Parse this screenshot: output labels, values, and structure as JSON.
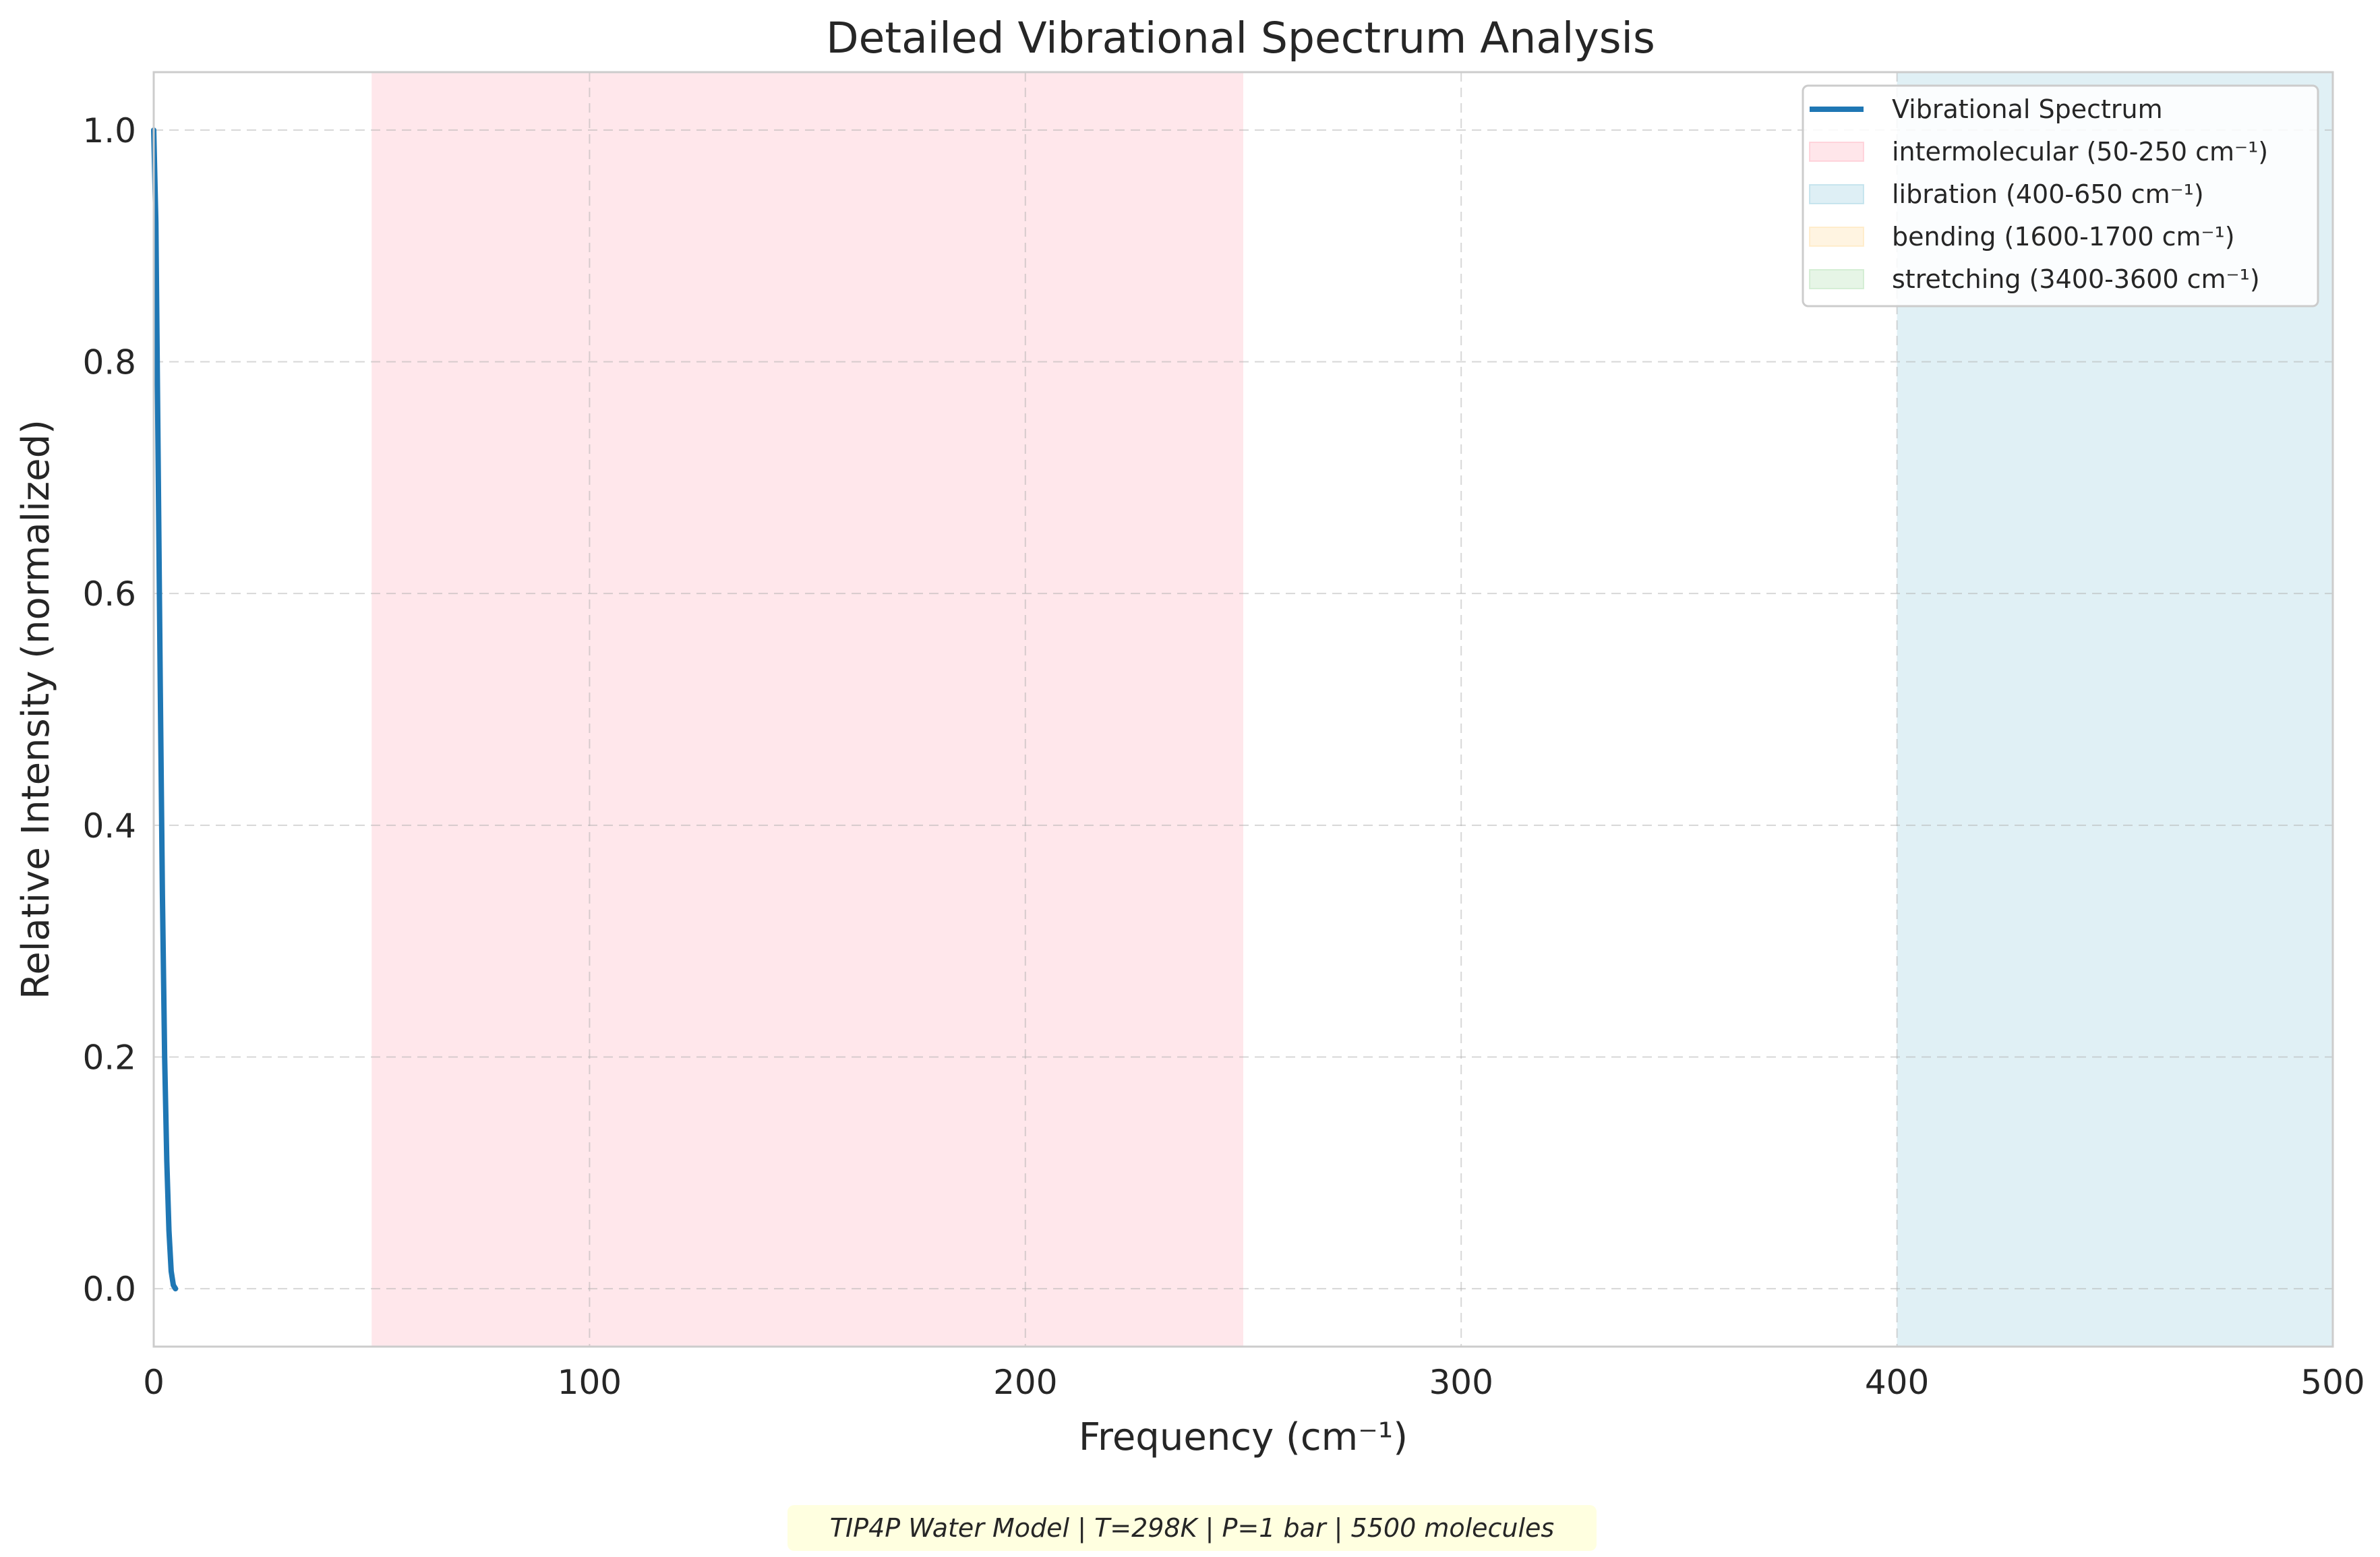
{
  "chart_data": {
    "type": "line",
    "title": "Detailed Vibrational Spectrum Analysis",
    "xlabel": "Frequency (cm⁻¹)",
    "ylabel": "Relative Intensity (normalized)",
    "xlim": [
      0,
      500
    ],
    "ylim": [
      -0.05,
      1.05
    ],
    "xticks": [
      0,
      100,
      200,
      300,
      400,
      500
    ],
    "xtick_labels": [
      "0",
      "100",
      "200",
      "300",
      "400",
      "500"
    ],
    "yticks": [
      0.0,
      0.2,
      0.4,
      0.6,
      0.8,
      1.0
    ],
    "ytick_labels": [
      "0.0",
      "0.2",
      "0.4",
      "0.6",
      "0.8",
      "1.0"
    ],
    "grid": true,
    "legend_position": "top-right",
    "series": [
      {
        "name": "Vibrational Spectrum",
        "color": "#1f77b4",
        "x": [
          0,
          0.5,
          1.0,
          1.5,
          2.0,
          2.5,
          3.0,
          3.5,
          4.0,
          4.5,
          5.0
        ],
        "y": [
          1.0,
          0.92,
          0.72,
          0.52,
          0.34,
          0.2,
          0.11,
          0.05,
          0.015,
          0.003,
          0.0
        ]
      }
    ],
    "bands": [
      {
        "label": "intermolecular (50-250 cm⁻¹)",
        "x0": 50,
        "x1": 250,
        "color": "#ffc0cb"
      },
      {
        "label": "libration (400-650 cm⁻¹)",
        "x0": 400,
        "x1": 650,
        "color": "#add8e6"
      },
      {
        "label": "bending (1600-1700 cm⁻¹)",
        "x0": 1600,
        "x1": 1700,
        "color": "#ffe4b5"
      },
      {
        "label": "stretching (3400-3600 cm⁻¹)",
        "x0": 3400,
        "x1": 3600,
        "color": "#c1e6c1"
      }
    ],
    "annotation": "TIP4P Water Model | T=298K | P=1 bar | 5500 molecules"
  }
}
